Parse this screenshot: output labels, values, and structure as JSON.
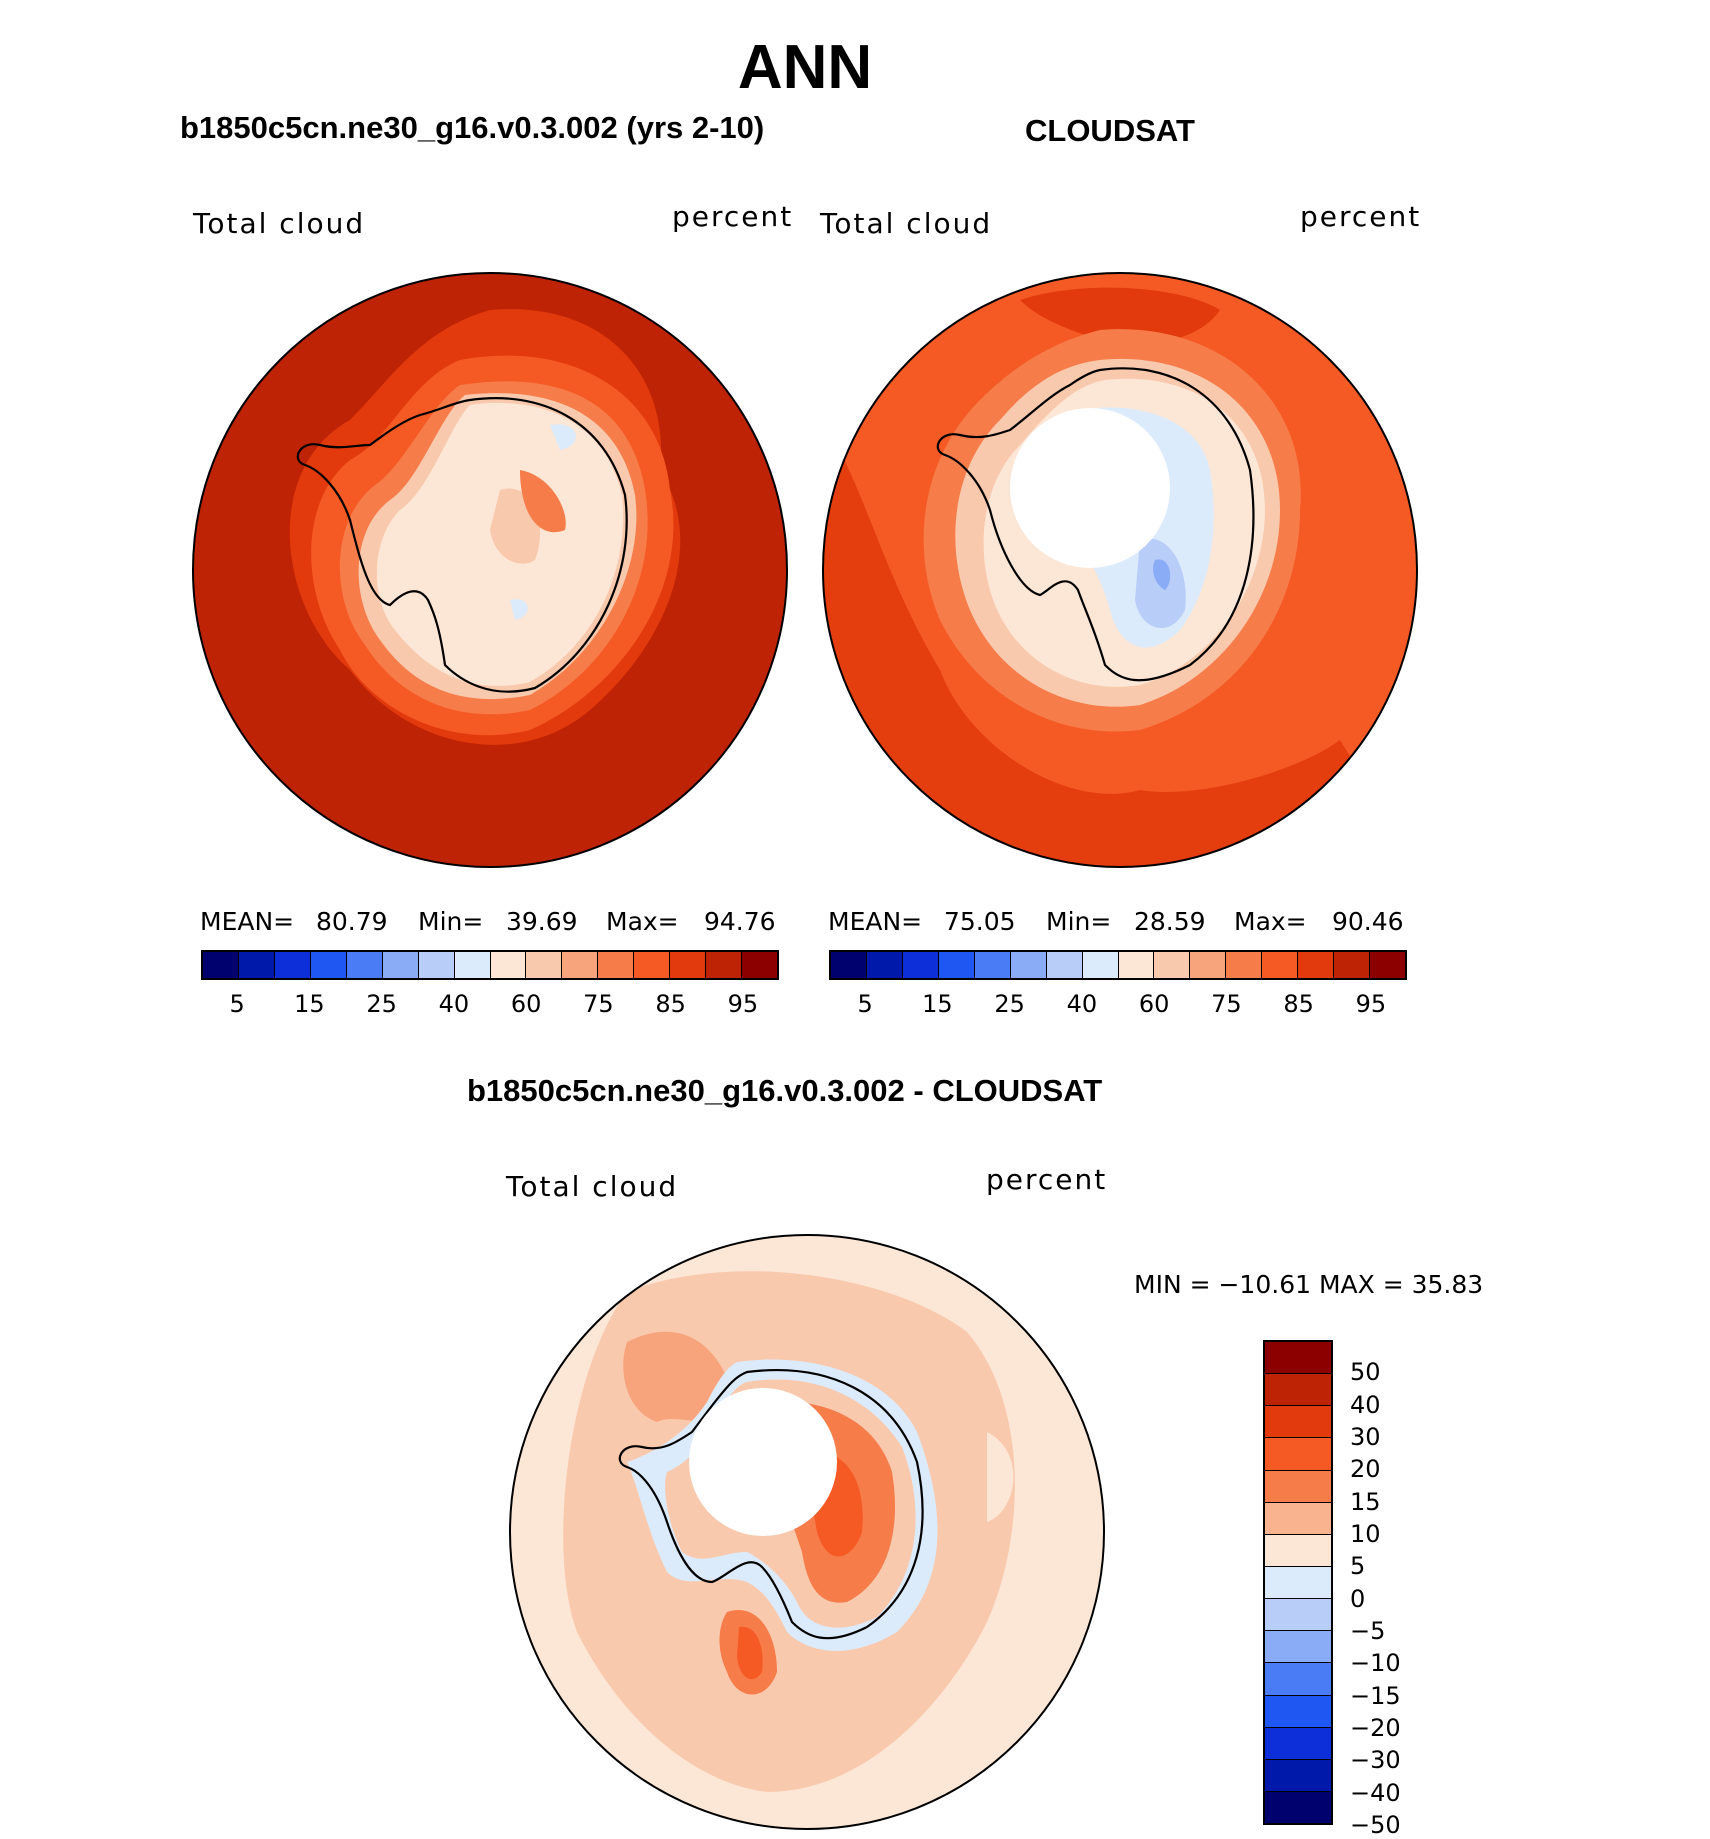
{
  "title": "ANN",
  "panels": {
    "model": {
      "title": "b1850c5cn.ne30_g16.v0.3.002 (yrs 2-10)",
      "variable": "Total cloud",
      "units": "percent",
      "stats": {
        "mean_label": "MEAN=",
        "mean": "80.79",
        "min_label": "Min=",
        "min": "39.69",
        "max_label": "Max=",
        "max": "94.76"
      }
    },
    "obs": {
      "title": "CLOUDSAT",
      "variable": "Total cloud",
      "units": "percent",
      "stats": {
        "mean_label": "MEAN=",
        "mean": "75.05",
        "min_label": "Min=",
        "min": "28.59",
        "max_label": "Max=",
        "max": "90.46"
      }
    },
    "diff": {
      "title": "b1850c5cn.ne30_g16.v0.3.002 - CLOUDSAT",
      "variable": "Total cloud",
      "units": "percent",
      "range_text": "MIN = −10.61  MAX =   35.83"
    }
  },
  "colorbars": {
    "abs": {
      "colors": [
        "#00006e",
        "#0019aa",
        "#0c2fd9",
        "#1f57f2",
        "#4a7df5",
        "#8aacf7",
        "#b8cdf8",
        "#dcebfb",
        "#fce6d6",
        "#f9c9ad",
        "#f7a47d",
        "#f67c4a",
        "#f55a24",
        "#e23a0c",
        "#bf2305",
        "#8c0000"
      ],
      "ticks": [
        "5",
        "15",
        "25",
        "40",
        "60",
        "75",
        "85",
        "95"
      ]
    },
    "diff": {
      "colors": [
        "#8c0000",
        "#bf2305",
        "#e23a0c",
        "#f55a24",
        "#f67c4a",
        "#f9b48f",
        "#fce6d6",
        "#dcebfb",
        "#b8cdf8",
        "#8aacf7",
        "#4a7df5",
        "#1f57f2",
        "#0c2fd9",
        "#0019aa",
        "#00006e"
      ],
      "ticks": [
        "50",
        "40",
        "30",
        "20",
        "15",
        "10",
        "5",
        "0",
        "−5",
        "−10",
        "−15",
        "−20",
        "−30",
        "−40",
        "−50"
      ]
    }
  }
}
